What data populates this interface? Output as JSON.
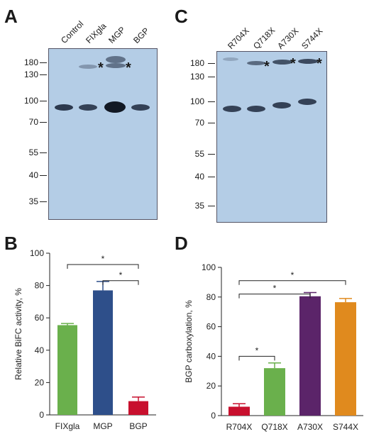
{
  "panels": {
    "A": "A",
    "B": "B",
    "C": "C",
    "D": "D"
  },
  "blot_a": {
    "lanes": [
      "Control",
      "FIXgla",
      "MGP",
      "BGP"
    ],
    "markers": [
      "180",
      "130",
      "100",
      "70",
      "55",
      "40",
      "35"
    ],
    "asterisks": [
      "*",
      "*"
    ]
  },
  "blot_c": {
    "lanes": [
      "R704X",
      "Q718X",
      "A730X",
      "S744X"
    ],
    "markers": [
      "180",
      "130",
      "100",
      "70",
      "55",
      "40",
      "35"
    ],
    "asterisks": [
      "*",
      "*",
      "*"
    ]
  },
  "colors": {
    "blot_bg": "#b4cde6",
    "green": "#6ab04c",
    "blue": "#2e4f8a",
    "red": "#c8102e",
    "purple": "#5b2469",
    "orange": "#e08a1e"
  },
  "chart_data": [
    {
      "type": "bar",
      "panel": "B",
      "ylabel": "Relative BiFC activity, %",
      "ylim": [
        0,
        100
      ],
      "yticks": [
        "0",
        "20",
        "40",
        "60",
        "80",
        "100"
      ],
      "categories": [
        "FIXgla",
        "MGP",
        "BGP"
      ],
      "values": [
        55.5,
        77,
        8.5
      ],
      "errors": [
        1,
        5.5,
        2.5
      ],
      "bar_colors": [
        "#6ab04c",
        "#2e4f8a",
        "#c8102e"
      ],
      "significance": [
        {
          "from": 0,
          "to": 2,
          "label": "*"
        },
        {
          "from": 1,
          "to": 2,
          "label": "*"
        }
      ]
    },
    {
      "type": "bar",
      "panel": "D",
      "ylabel": "BGP carboxylation, %",
      "ylim": [
        0,
        100
      ],
      "yticks": [
        "0",
        "20",
        "40",
        "60",
        "80",
        "100"
      ],
      "categories": [
        "R704X",
        "Q718X",
        "A730X",
        "S744X"
      ],
      "values": [
        6,
        32,
        80.5,
        76.5
      ],
      "errors": [
        2,
        3.5,
        2.5,
        2.5
      ],
      "bar_colors": [
        "#c8102e",
        "#6ab04c",
        "#5b2469",
        "#e08a1e"
      ],
      "significance": [
        {
          "from": 0,
          "to": 3,
          "label": "*"
        },
        {
          "from": 0,
          "to": 2,
          "label": "*"
        },
        {
          "from": 0,
          "to": 1,
          "label": "*"
        }
      ]
    }
  ]
}
